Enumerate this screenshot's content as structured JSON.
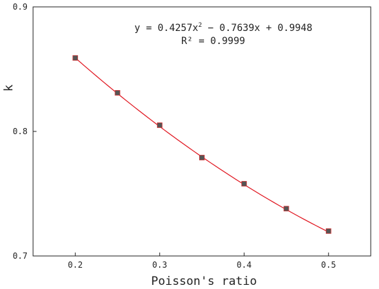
{
  "chart_data": {
    "type": "scatter",
    "xlabel": "Poisson's ratio",
    "ylabel": "k",
    "xlim": [
      0.15,
      0.55
    ],
    "ylim": [
      0.7,
      0.9
    ],
    "xticks": [
      0.2,
      0.3,
      0.4,
      0.5
    ],
    "xtick_labels": [
      "0.2",
      "0.3",
      "0.4",
      "0.5"
    ],
    "yticks": [
      0.7,
      0.8,
      0.9
    ],
    "ytick_labels": [
      "0.7",
      "0.8",
      "0.9"
    ],
    "grid": false,
    "series": [
      {
        "type": "scatter",
        "marker": "square",
        "color": "#555555",
        "edge_color": "#cc3333",
        "x": [
          0.2,
          0.25,
          0.3,
          0.35,
          0.4,
          0.45,
          0.5
        ],
        "y": [
          0.859,
          0.831,
          0.805,
          0.779,
          0.758,
          0.738,
          0.72
        ]
      },
      {
        "type": "line",
        "color": "#e0141e",
        "fit": {
          "a2": 0.4257,
          "a1": -0.7639,
          "a0": 0.9948
        },
        "x_range": [
          0.2,
          0.5
        ]
      }
    ],
    "annotations": {
      "equation_prefix": "y = 0.4257x",
      "equation_exp": "2",
      "equation_suffix": " − 0.7639x + 0.9948",
      "r_squared": "R² = 0.9999"
    }
  }
}
